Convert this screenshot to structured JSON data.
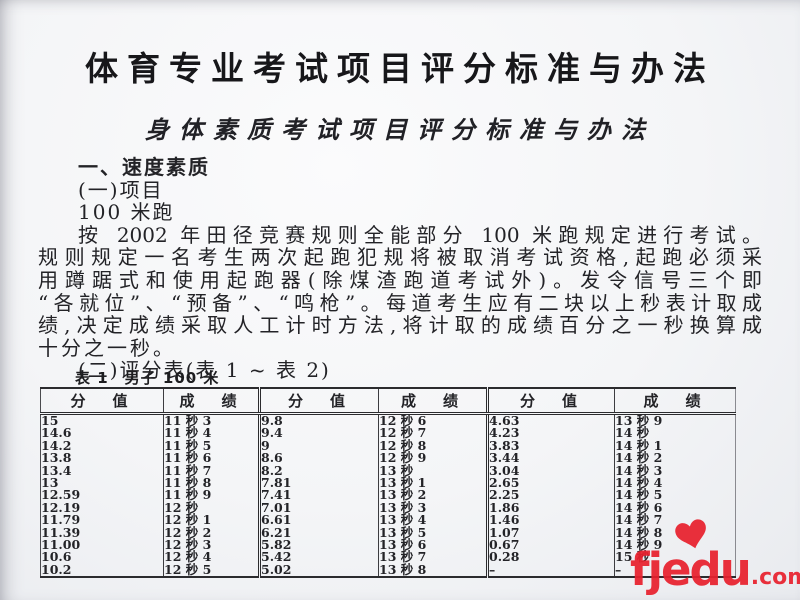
{
  "document": {
    "title": "体育专业考试项目评分标准与办法",
    "subtitle": "身体素质考试项目评分标准与办法",
    "section_heading": "一、速度素质",
    "item_label": "(一)项目",
    "item_name": "100 米跑",
    "paragraph_lines": [
      "按 2002 年田径竞赛规则全能部分 100 米跑规定进行考试。",
      "规则规定一名考生两次起跑犯规将被取消考试资格,起跑必须采",
      "用蹲踞式和使用起跑器(除煤渣跑道考试外)。发令信号三个即",
      "“各就位”、“预备”、“鸣枪”。每道考生应有二块以上秒表计取成",
      "绩,决定成绩采取人工计时方法,将计取的成绩百分之一秒换算成",
      "十分之一秒。"
    ],
    "table_intro": "(二)评分表(表 1 ~ 表 2)",
    "table_caption": "表 1　男子 100 米"
  },
  "table": {
    "headers": [
      "分　值",
      "成　绩",
      "分　值",
      "成　绩",
      "分　值",
      "成　绩"
    ],
    "rows": [
      [
        "15",
        "11 秒 3",
        "9.8",
        "12 秒 6",
        "4.63",
        "13 秒 9"
      ],
      [
        "14.6",
        "11 秒 4",
        "9.4",
        "12 秒 7",
        "4.23",
        "14 秒"
      ],
      [
        "14.2",
        "11 秒 5",
        "9",
        "12 秒 8",
        "3.83",
        "14 秒 1"
      ],
      [
        "13.8",
        "11 秒 6",
        "8.6",
        "12 秒 9",
        "3.44",
        "14 秒 2"
      ],
      [
        "13.4",
        "11 秒 7",
        "8.2",
        "13 秒",
        "3.04",
        "14 秒 3"
      ],
      [
        "13",
        "11 秒 8",
        "7.81",
        "13 秒 1",
        "2.65",
        "14 秒 4"
      ],
      [
        "12.59",
        "11 秒 9",
        "7.41",
        "13 秒 2",
        "2.25",
        "14 秒 5"
      ],
      [
        "12.19",
        "12 秒",
        "7.01",
        "13 秒 3",
        "1.86",
        "14 秒 6"
      ],
      [
        "11.79",
        "12 秒 1",
        "6.61",
        "13 秒 4",
        "1.46",
        "14 秒 7"
      ],
      [
        "11.39",
        "12 秒 2",
        "6.21",
        "13 秒 5",
        "1.07",
        "14 秒 8"
      ],
      [
        "11.00",
        "12 秒 3",
        "5.82",
        "13 秒 6",
        "0.67",
        "14 秒 9"
      ],
      [
        "10.6",
        "12 秒 4",
        "5.42",
        "13 秒 7",
        "0.28",
        "15 秒"
      ],
      [
        "10.2",
        "12 秒 5",
        "5.02",
        "13 秒 8",
        "–",
        "–"
      ]
    ]
  },
  "watermark": {
    "brand": "fjedu",
    "suffix": ".com",
    "icon": "heart-icon",
    "color": "#e8212e"
  }
}
